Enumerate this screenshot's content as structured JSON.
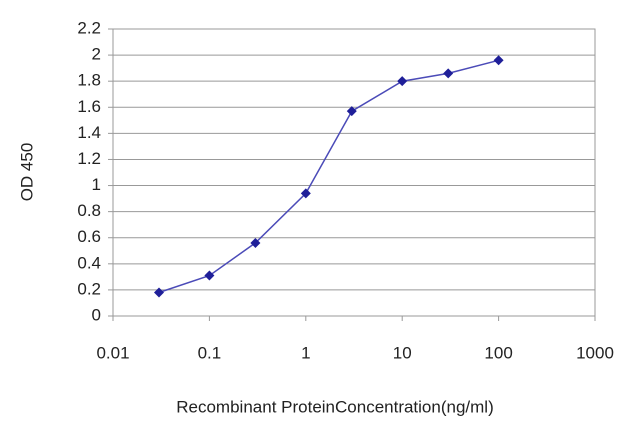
{
  "chart_data": {
    "type": "line",
    "x_label": "Recombinant ProteinConcentration(ng/ml)",
    "y_label": "OD 450",
    "x": [
      0.03,
      0.1,
      0.3,
      1,
      3,
      10,
      30,
      100
    ],
    "series": [
      {
        "color": "#1f1f99",
        "values": [
          0.18,
          0.31,
          0.56,
          0.94,
          1.57,
          1.8,
          1.86,
          1.96
        ]
      }
    ],
    "x_log": true,
    "xlim": [
      0.01,
      1000
    ],
    "xticks": [
      0.01,
      0.1,
      1,
      10,
      100,
      1000
    ],
    "ylim": [
      0,
      2.2
    ],
    "yticks": [
      0,
      0.2,
      0.4,
      0.6,
      0.8,
      1,
      1.2,
      1.4,
      1.6,
      1.8,
      2,
      2.2
    ],
    "grid": true
  }
}
